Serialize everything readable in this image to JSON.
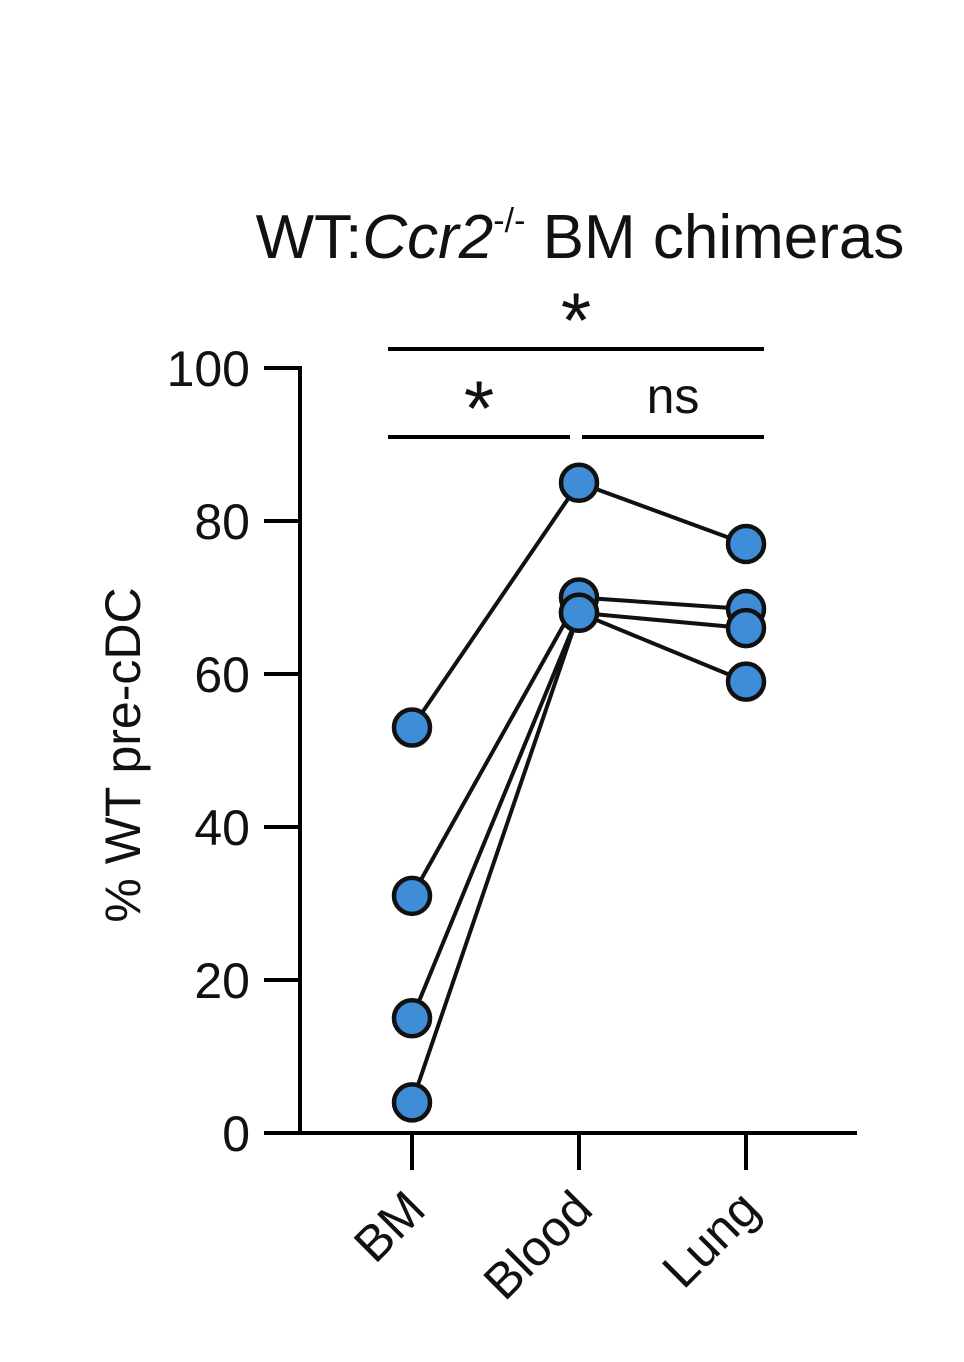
{
  "chart_data": {
    "type": "line",
    "title": {
      "prefix": "WT:",
      "gene": "Ccr2",
      "superscript": "-/-",
      "suffix": " BM chimeras"
    },
    "xlabel": "",
    "ylabel": "% WT pre-cDC",
    "categories": [
      "BM",
      "Blood",
      "Lung"
    ],
    "ylim": [
      0,
      100
    ],
    "yticks": [
      0,
      20,
      40,
      60,
      80,
      100
    ],
    "grid": false,
    "legend": "none",
    "point_color": "#3f8dd6",
    "series": [
      {
        "values": [
          53,
          85,
          77
        ]
      },
      {
        "values": [
          31,
          70,
          68.5
        ]
      },
      {
        "values": [
          15,
          68,
          66
        ]
      },
      {
        "values": [
          4,
          68,
          59
        ]
      }
    ],
    "significance": [
      {
        "from": "BM",
        "to": "Lung",
        "label": "*"
      },
      {
        "from": "BM",
        "to": "Blood",
        "label": "*"
      },
      {
        "from": "Blood",
        "to": "Lung",
        "label": "ns"
      }
    ]
  }
}
